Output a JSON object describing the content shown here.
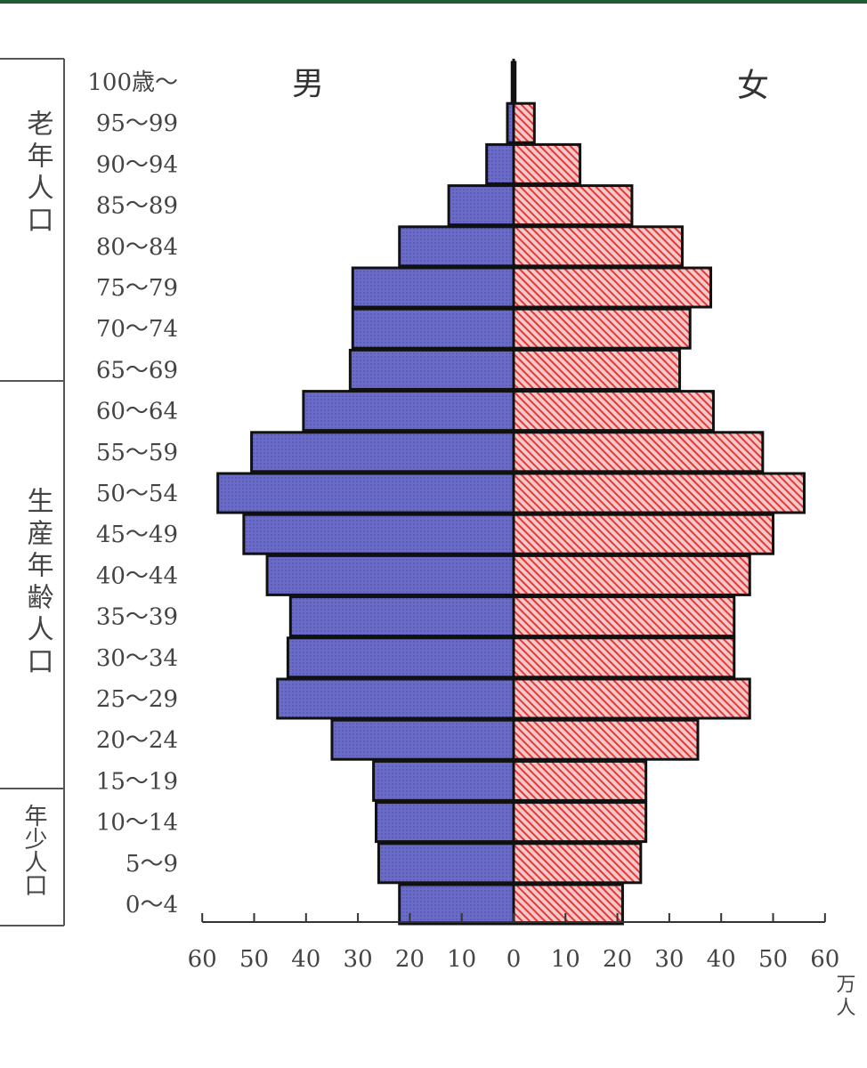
{
  "colors": {
    "top_bar": "#1f5c32",
    "male_fill": "#6b6bc8",
    "female_fill": "#f6b8b8",
    "female_hatch": "#e23a3a",
    "outline": "#111111"
  },
  "chart_data": {
    "type": "bar",
    "orientation": "horizontal",
    "title": "",
    "male_label": "男",
    "female_label": "女",
    "unit_label": "万人",
    "xlim": [
      0,
      60
    ],
    "x_ticks": [
      "60",
      "50",
      "40",
      "30",
      "20",
      "10",
      "0",
      "10",
      "20",
      "30",
      "40",
      "50",
      "60"
    ],
    "categories": [
      "100歳～",
      "95～99",
      "90～94",
      "85～89",
      "80～84",
      "75～79",
      "70～74",
      "65～69",
      "60～64",
      "55～59",
      "50～54",
      "45～49",
      "40～44",
      "35～39",
      "30～34",
      "25～29",
      "20～24",
      "15～19",
      "10～14",
      "5～9",
      "0～4"
    ],
    "series": [
      {
        "name": "男",
        "values": [
          0.3,
          1.2,
          5.2,
          12.5,
          22,
          31,
          31,
          31.5,
          40.5,
          50.5,
          57,
          52,
          47.5,
          43,
          43.5,
          45.5,
          35,
          27,
          26.5,
          26,
          22
        ]
      },
      {
        "name": "女",
        "values": [
          0.3,
          4,
          12.8,
          22.8,
          32.5,
          38,
          34,
          32,
          38.5,
          48,
          56,
          50,
          45.5,
          42.5,
          42.5,
          45.5,
          35.5,
          25.5,
          25.5,
          24.5,
          21
        ]
      }
    ],
    "groups": [
      {
        "label": "老年人口",
        "from": "100歳～",
        "to": "65～69"
      },
      {
        "label": "生産年齢人口",
        "from": "60～64",
        "to": "15～19"
      },
      {
        "label": "年少人口",
        "from": "10～14",
        "to": "0～4"
      }
    ]
  }
}
